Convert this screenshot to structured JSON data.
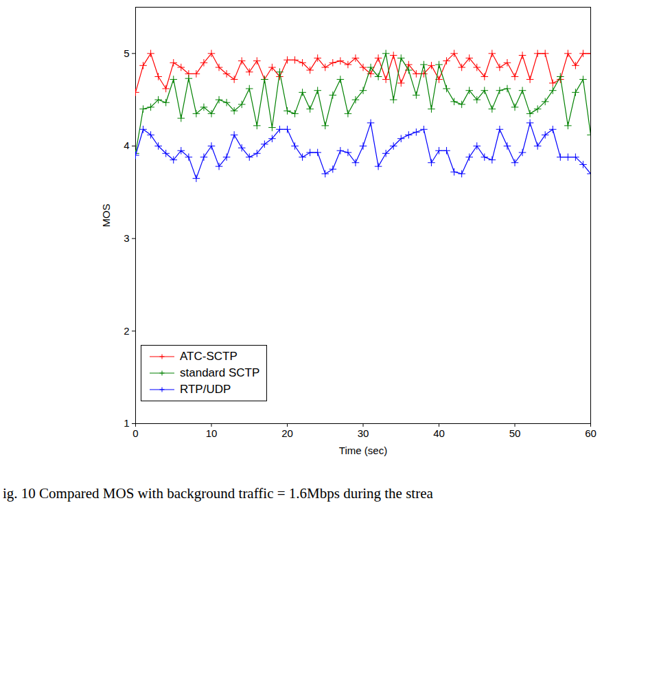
{
  "chart_data": {
    "type": "line",
    "caption": "ig. 10 Compared MOS with background traffic = 1.6Mbps during the strea",
    "x_label": "Time (sec)",
    "y_label": "MOS",
    "x": [
      0,
      1,
      2,
      3,
      4,
      5,
      6,
      7,
      8,
      9,
      10,
      11,
      12,
      13,
      14,
      15,
      16,
      17,
      18,
      19,
      20,
      21,
      22,
      23,
      24,
      25,
      26,
      27,
      28,
      29,
      30,
      31,
      32,
      33,
      34,
      35,
      36,
      37,
      38,
      39,
      40,
      41,
      42,
      43,
      44,
      45,
      46,
      47,
      48,
      49,
      50,
      51,
      52,
      53,
      54,
      55,
      56,
      57,
      58,
      59,
      60
    ],
    "series": [
      {
        "name": "ATC-SCTP",
        "color": "#ff0000",
        "marker": "plus",
        "values": [
          4.58,
          4.87,
          5.0,
          4.75,
          4.62,
          4.9,
          4.85,
          4.78,
          4.78,
          4.9,
          5.0,
          4.85,
          4.78,
          4.72,
          4.92,
          4.8,
          4.92,
          4.72,
          4.85,
          4.75,
          4.93,
          4.93,
          4.9,
          4.82,
          4.95,
          4.85,
          4.9,
          4.92,
          4.88,
          4.95,
          4.85,
          4.78,
          4.95,
          4.72,
          4.98,
          4.68,
          4.88,
          4.78,
          4.78,
          4.87,
          4.72,
          4.92,
          5.0,
          4.85,
          4.95,
          4.85,
          4.75,
          5.0,
          4.85,
          4.9,
          4.75,
          4.98,
          4.72,
          5.0,
          5.0,
          4.68,
          4.72,
          5.0,
          4.87,
          5.0,
          5.0
        ]
      },
      {
        "name": "standard SCTP",
        "color": "#008000",
        "marker": "plus",
        "values": [
          3.92,
          4.4,
          4.42,
          4.5,
          4.47,
          4.72,
          4.3,
          4.73,
          4.35,
          4.42,
          4.35,
          4.5,
          4.47,
          4.38,
          4.45,
          4.62,
          4.22,
          4.72,
          4.2,
          4.8,
          4.38,
          4.35,
          4.58,
          4.4,
          4.6,
          4.22,
          4.55,
          4.72,
          4.35,
          4.5,
          4.6,
          4.85,
          4.75,
          5.0,
          4.5,
          4.95,
          4.82,
          4.55,
          4.88,
          4.4,
          4.88,
          4.62,
          4.48,
          4.45,
          4.6,
          4.5,
          4.6,
          4.4,
          4.6,
          4.62,
          4.42,
          4.6,
          4.35,
          4.4,
          4.48,
          4.6,
          4.75,
          4.22,
          4.58,
          4.72,
          4.12
        ]
      },
      {
        "name": "RTP/UDP",
        "color": "#0000ff",
        "marker": "plus",
        "values": [
          3.9,
          4.18,
          4.12,
          4.0,
          3.92,
          3.85,
          3.95,
          3.88,
          3.65,
          3.88,
          4.0,
          3.78,
          3.88,
          4.12,
          3.98,
          3.88,
          3.92,
          4.02,
          4.08,
          4.18,
          4.18,
          4.0,
          3.88,
          3.93,
          3.93,
          3.7,
          3.75,
          3.95,
          3.93,
          3.82,
          4.0,
          4.25,
          3.78,
          3.92,
          4.0,
          4.08,
          4.12,
          4.15,
          4.18,
          3.82,
          3.95,
          3.95,
          3.72,
          3.7,
          3.88,
          4.0,
          3.88,
          3.85,
          4.18,
          4.0,
          3.82,
          3.93,
          4.25,
          4.0,
          4.12,
          4.18,
          3.88,
          3.88,
          3.88,
          3.8,
          3.7
        ]
      }
    ],
    "xlim": [
      0,
      60
    ],
    "xticks": [
      0,
      10,
      20,
      30,
      40,
      50,
      60
    ],
    "ylim": [
      1,
      5.5
    ],
    "yticks": [
      1,
      2,
      3,
      4,
      5
    ],
    "grid": false,
    "legend": "lower left"
  }
}
